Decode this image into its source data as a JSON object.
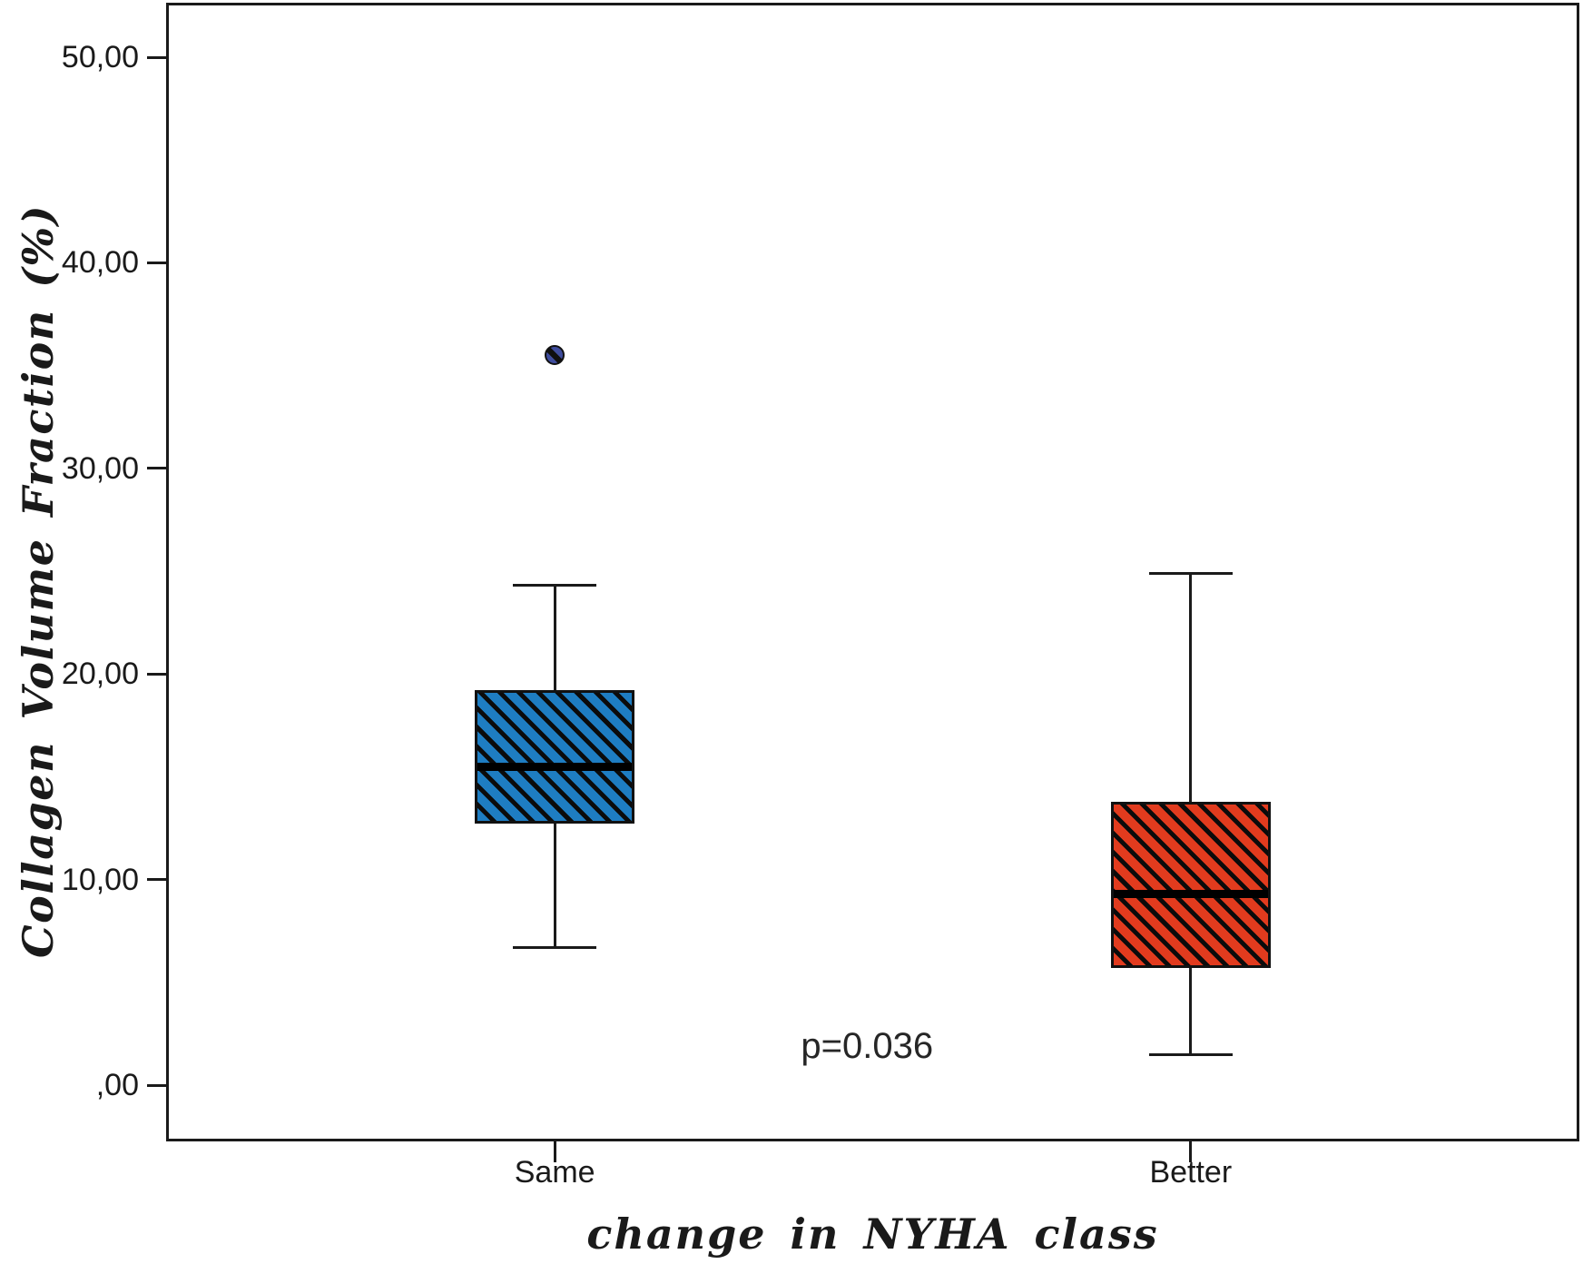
{
  "chart_data": {
    "type": "boxplot",
    "title": "",
    "xlabel": "change in NYHA class",
    "ylabel": "Collagen Volume Fraction (%)",
    "ylim": [
      -2.7,
      52.7
    ],
    "grid": false,
    "legend": "none",
    "ytick_values": [
      0,
      10,
      20,
      30,
      40,
      50
    ],
    "ytick_labels": [
      ",00",
      "10,00",
      "20,00",
      "30,00",
      "40,00",
      "50,00"
    ],
    "categories": [
      "Same",
      "Better"
    ],
    "series": [
      {
        "name": "Same",
        "x_frac": 0.275,
        "whisker_low": 6.7,
        "q1": 12.7,
        "median": 15.5,
        "q3": 19.2,
        "whisker_high": 24.3,
        "outliers": [
          35.5
        ],
        "fill_color": "#1e7dc2"
      },
      {
        "name": "Better",
        "x_frac": 0.725,
        "whisker_low": 1.5,
        "q1": 5.7,
        "median": 9.3,
        "q3": 13.8,
        "whisker_high": 24.9,
        "outliers": [],
        "fill_color": "#e23b1e"
      }
    ],
    "annotation": {
      "text": "p=0.036",
      "x_frac": 0.496,
      "y_value": 1.9
    },
    "outlier_fill_color": "#3f4d9e",
    "hatch_style": "diagonal-down-black",
    "line_color": "#1a1a1a"
  }
}
